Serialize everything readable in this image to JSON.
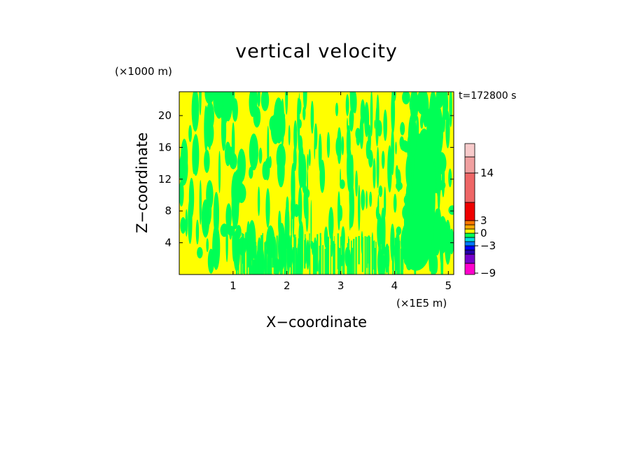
{
  "chart_data": {
    "type": "heatmap",
    "title": "vertical velocity",
    "xlabel": "X−coordinate",
    "ylabel": "Z−coordinate",
    "x_unit": "(×1E5 m)",
    "z_unit": "(×1000 m)",
    "time_label": "t=172800 s",
    "xlim": [
      0,
      5.1
    ],
    "zlim": [
      0,
      23
    ],
    "x_ticks": [
      "1",
      "2",
      "3",
      "4",
      "5"
    ],
    "x_tick_values": [
      1,
      2,
      3,
      4,
      5
    ],
    "z_ticks": [
      "4",
      "8",
      "12",
      "16",
      "20"
    ],
    "z_tick_values": [
      4,
      8,
      12,
      16,
      20
    ],
    "field_colors": {
      "positive": "#ffff00",
      "negative": "#00ff55"
    },
    "colorbar": {
      "tick_labels": [
        "14",
        "3",
        "0",
        "−3",
        "−9"
      ],
      "tick_values": [
        14,
        3,
        0,
        -3,
        -9
      ],
      "levels": [
        {
          "value": -9,
          "color": "#ff00cc"
        },
        {
          "value": -7,
          "color": "#7700cc"
        },
        {
          "value": -5,
          "color": "#2200aa"
        },
        {
          "value": -3,
          "color": "#0000ff"
        },
        {
          "value": -2,
          "color": "#0077ff"
        },
        {
          "value": -1,
          "color": "#00dddd"
        },
        {
          "value": 0,
          "color": "#00ff55"
        },
        {
          "value": 1,
          "color": "#ffff00"
        },
        {
          "value": 2,
          "color": "#ffaa00"
        },
        {
          "value": 3,
          "color": "#ff7700"
        },
        {
          "value": 5,
          "color": "#ee0000"
        },
        {
          "value": 14,
          "color": "#ee6666"
        },
        {
          "value": 18,
          "color": "#f0a0a0"
        },
        {
          "value": 22,
          "color": "#f7caca"
        }
      ]
    }
  }
}
